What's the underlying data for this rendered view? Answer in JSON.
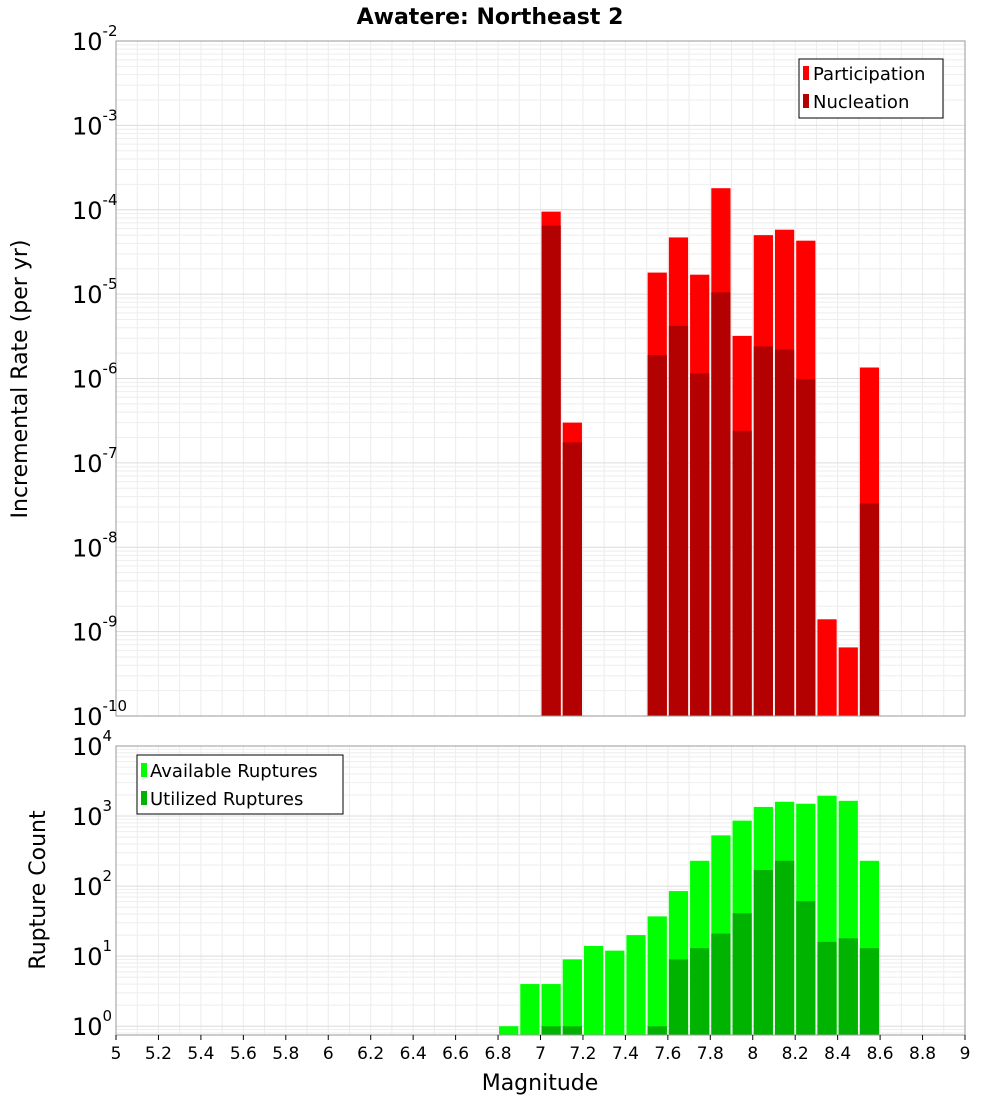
{
  "chart_data": [
    {
      "type": "bar",
      "title": "Awatere: Northeast 2",
      "xlabel": "",
      "ylabel": "Incremental Rate (per yr)",
      "yscale": "log",
      "ylim": [
        1e-10,
        0.01
      ],
      "xlim": [
        5,
        9
      ],
      "grid": true,
      "legend_position": "top-right",
      "series": [
        {
          "name": "Participation",
          "color": "#ff0000",
          "x": [
            7.0,
            7.1,
            7.5,
            7.6,
            7.7,
            7.8,
            7.9,
            8.0,
            8.1,
            8.2,
            8.3,
            8.4,
            8.5
          ],
          "values": [
            9.5e-05,
            3e-07,
            1.8e-05,
            4.7e-05,
            1.7e-05,
            0.00018,
            3.2e-06,
            5e-05,
            5.8e-05,
            4.3e-05,
            1.4e-09,
            6.5e-10,
            1.35e-06
          ]
        },
        {
          "name": "Nucleation",
          "color": "#b30000",
          "x": [
            7.0,
            7.1,
            7.5,
            7.6,
            7.7,
            7.8,
            7.9,
            8.0,
            8.1,
            8.2,
            8.5
          ],
          "values": [
            6.5e-05,
            1.75e-07,
            1.9e-06,
            4.2e-06,
            1.15e-06,
            1.05e-05,
            2.4e-07,
            2.4e-06,
            2.2e-06,
            9.8e-07,
            3.3e-08
          ]
        }
      ]
    },
    {
      "type": "bar",
      "title": "",
      "xlabel": "Magnitude",
      "ylabel": "Rupture Count",
      "yscale": "log",
      "ylim": [
        0.75,
        10000
      ],
      "xlim": [
        5,
        9
      ],
      "grid": true,
      "legend_position": "top-left",
      "series": [
        {
          "name": "Available Ruptures",
          "color": "#00ff00",
          "x": [
            6.8,
            6.9,
            7.0,
            7.1,
            7.2,
            7.3,
            7.4,
            7.5,
            7.6,
            7.7,
            7.8,
            7.9,
            8.0,
            8.1,
            8.2,
            8.3,
            8.4,
            8.5
          ],
          "values": [
            1,
            4,
            4,
            9,
            14,
            12,
            20,
            37,
            85,
            230,
            530,
            860,
            1350,
            1600,
            1500,
            1950,
            1650,
            230
          ]
        },
        {
          "name": "Utilized Ruptures",
          "color": "#00b300",
          "x": [
            7.0,
            7.1,
            7.5,
            7.6,
            7.7,
            7.8,
            7.9,
            8.0,
            8.1,
            8.2,
            8.3,
            8.4,
            8.5
          ],
          "values": [
            1,
            1,
            1,
            9,
            13,
            21,
            41,
            170,
            230,
            61,
            16,
            18,
            13
          ]
        }
      ]
    }
  ],
  "x_ticks": [
    "5",
    "5.2",
    "5.4",
    "5.6",
    "5.8",
    "6",
    "6.2",
    "6.4",
    "6.6",
    "6.8",
    "7",
    "7.2",
    "7.4",
    "7.6",
    "7.8",
    "8",
    "8.2",
    "8.4",
    "8.6",
    "8.8",
    "9"
  ],
  "top_y_ticks": [
    {
      "base": "10",
      "exp": "-2",
      "value": 0.01
    },
    {
      "base": "10",
      "exp": "-3",
      "value": 0.001
    },
    {
      "base": "10",
      "exp": "-4",
      "value": 0.0001
    },
    {
      "base": "10",
      "exp": "-5",
      "value": 1e-05
    },
    {
      "base": "10",
      "exp": "-6",
      "value": 1e-06
    },
    {
      "base": "10",
      "exp": "-7",
      "value": 1e-07
    },
    {
      "base": "10",
      "exp": "-8",
      "value": 1e-08
    },
    {
      "base": "10",
      "exp": "-9",
      "value": 1e-09
    },
    {
      "base": "10",
      "exp": "-10",
      "value": 1e-10
    }
  ],
  "bottom_y_ticks": [
    {
      "base": "10",
      "exp": "4",
      "value": 10000
    },
    {
      "base": "10",
      "exp": "3",
      "value": 1000
    },
    {
      "base": "10",
      "exp": "2",
      "value": 100
    },
    {
      "base": "10",
      "exp": "1",
      "value": 10
    },
    {
      "base": "10",
      "exp": "0",
      "value": 1
    }
  ]
}
